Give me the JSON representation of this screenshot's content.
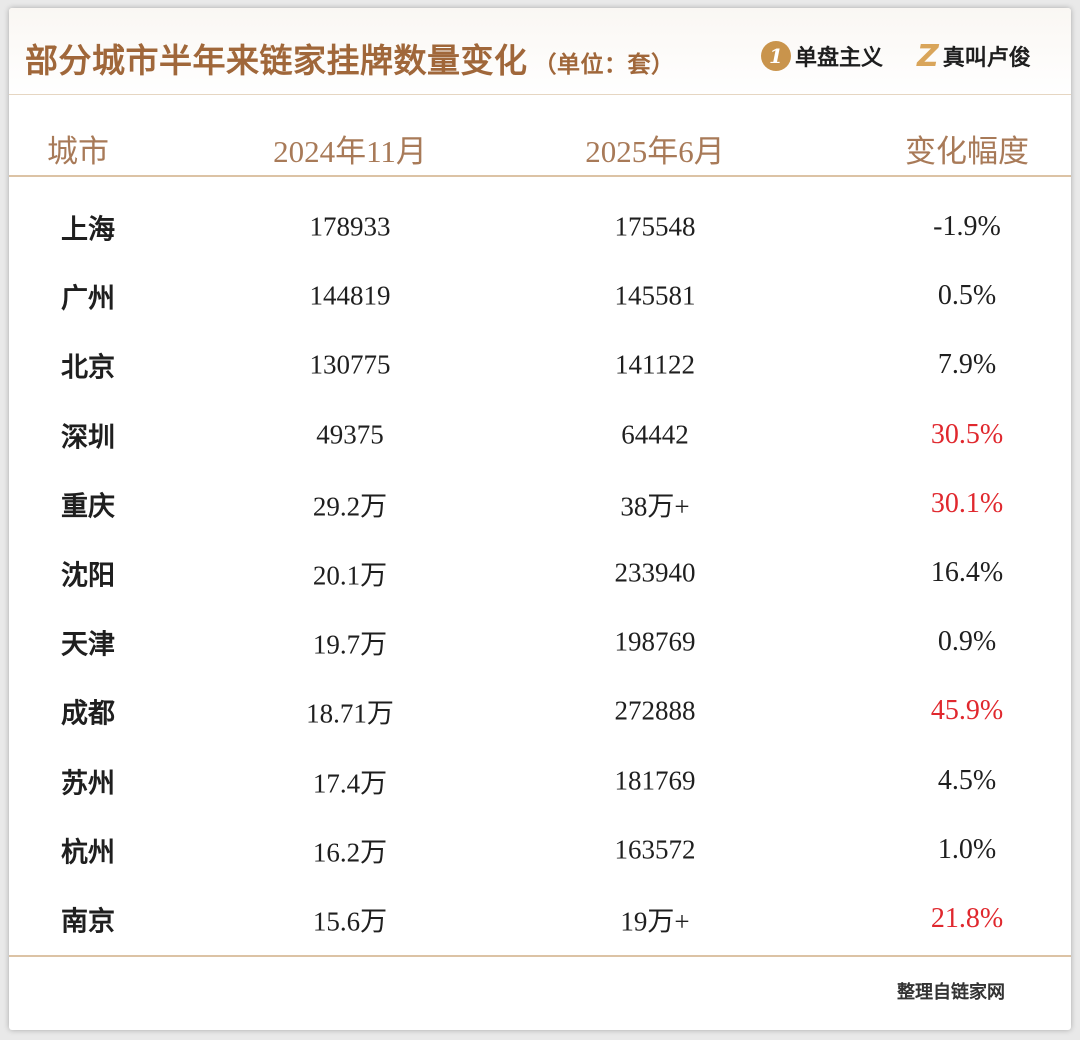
{
  "title": "部分城市半年来链家挂牌数量变化",
  "unit": "（单位：套）",
  "brands": [
    {
      "mark": "1",
      "name": "单盘主义"
    },
    {
      "mark": "Z",
      "name": "真叫卢俊"
    }
  ],
  "highlight_color": "#e0282e",
  "accent_color": "#a0673a",
  "chart_data": {
    "type": "table",
    "title": "部分城市半年来链家挂牌数量变化",
    "unit": "（单位：套）",
    "columns": [
      "城市",
      "2024年11月",
      "2025年6月",
      "变化幅度"
    ],
    "rows": [
      {
        "city": "上海",
        "nov_2024": "178933",
        "jun_2025": "175548",
        "change": "-1.9%",
        "highlight": false
      },
      {
        "city": "广州",
        "nov_2024": "144819",
        "jun_2025": "145581",
        "change": "0.5%",
        "highlight": false
      },
      {
        "city": "北京",
        "nov_2024": "130775",
        "jun_2025": "141122",
        "change": "7.9%",
        "highlight": false
      },
      {
        "city": "深圳",
        "nov_2024": "49375",
        "jun_2025": "64442",
        "change": "30.5%",
        "highlight": true
      },
      {
        "city": "重庆",
        "nov_2024": "29.2万",
        "jun_2025": "38万+",
        "change": "30.1%",
        "highlight": true
      },
      {
        "city": "沈阳",
        "nov_2024": "20.1万",
        "jun_2025": "233940",
        "change": "16.4%",
        "highlight": false
      },
      {
        "city": "天津",
        "nov_2024": "19.7万",
        "jun_2025": "198769",
        "change": "0.9%",
        "highlight": false
      },
      {
        "city": "成都",
        "nov_2024": "18.71万",
        "jun_2025": "272888",
        "change": "45.9%",
        "highlight": true
      },
      {
        "city": "苏州",
        "nov_2024": "17.4万",
        "jun_2025": "181769",
        "change": "4.5%",
        "highlight": false
      },
      {
        "city": "杭州",
        "nov_2024": "16.2万",
        "jun_2025": "163572",
        "change": "1.0%",
        "highlight": false
      },
      {
        "city": "南京",
        "nov_2024": "15.6万",
        "jun_2025": "19万+",
        "change": "21.8%",
        "highlight": true
      }
    ],
    "source": "整理自链家网"
  }
}
